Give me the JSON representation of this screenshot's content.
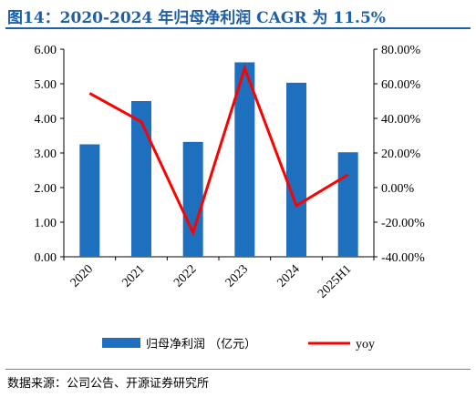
{
  "title": "图14：2020-2024 年归母净利润 CAGR 为 11.5%",
  "source": "数据来源：公司公告、开源证券研究所",
  "chart_data": {
    "type": "bar",
    "categories": [
      "2020",
      "2021",
      "2022",
      "2023",
      "2024",
      "2025H1"
    ],
    "series": [
      {
        "name": "归母净利润 （亿元）",
        "type": "bar",
        "axis": "left",
        "color": "#1f6fbf",
        "values": [
          3.25,
          4.5,
          3.32,
          5.62,
          5.03,
          3.02
        ]
      },
      {
        "name": "yoy",
        "type": "line",
        "axis": "right",
        "color": "#ff0000",
        "values": [
          54.5,
          38.0,
          -26.0,
          69.0,
          -10.5,
          7.5
        ]
      }
    ],
    "ylim_left": [
      0,
      6
    ],
    "yticks_left": [
      "0.00",
      "1.00",
      "2.00",
      "3.00",
      "4.00",
      "5.00",
      "6.00"
    ],
    "ylim_right": [
      -40,
      80
    ],
    "yticks_right": [
      "-40.00%",
      "-20.00%",
      "0.00%",
      "20.00%",
      "40.00%",
      "60.00%",
      "80.00%"
    ],
    "grid": false,
    "legend_position": "bottom"
  }
}
